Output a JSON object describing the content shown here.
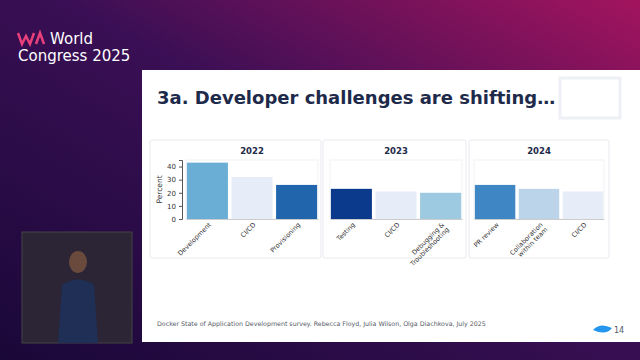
{
  "event": [
    "World",
    "Congress 2025"
  ],
  "slide_title": "3a. Developer challenges are shifting…",
  "source": "Docker State of Application Development survey. Rebecca Floyd, Julia Wilson, Olga Diachkova, July 2025",
  "page": 14,
  "chart_data": [
    {
      "type": "bar",
      "title": "2022",
      "ylabel": "Percent",
      "categories": [
        "Development",
        "CI/CD",
        "Provisioning"
      ],
      "values": [
        43,
        32,
        26
      ],
      "colors": [
        "#6aaed6",
        "#e6edf8",
        "#2166ac"
      ],
      "ylim": [
        0,
        45
      ],
      "yticks": [
        0,
        10,
        20,
        30,
        40
      ],
      "tick_labels": true
    },
    {
      "type": "bar",
      "title": "2023",
      "categories": [
        "Testing",
        "CI/CD",
        "Debugging & Troubleshooting"
      ],
      "values": [
        23,
        21,
        20
      ],
      "colors": [
        "#0b3a8c",
        "#e6edf8",
        "#9ecae1"
      ],
      "ylim": [
        0,
        45
      ],
      "tick_labels": "x"
    },
    {
      "type": "bar",
      "title": "2024",
      "categories": [
        "PR review",
        "Collaboration within team",
        "CI/CD"
      ],
      "values": [
        26,
        23,
        21
      ],
      "colors": [
        "#3f86c4",
        "#bcd4ea",
        "#e6edf8"
      ],
      "ylim": [
        0,
        45
      ],
      "tick_labels": "x"
    }
  ]
}
